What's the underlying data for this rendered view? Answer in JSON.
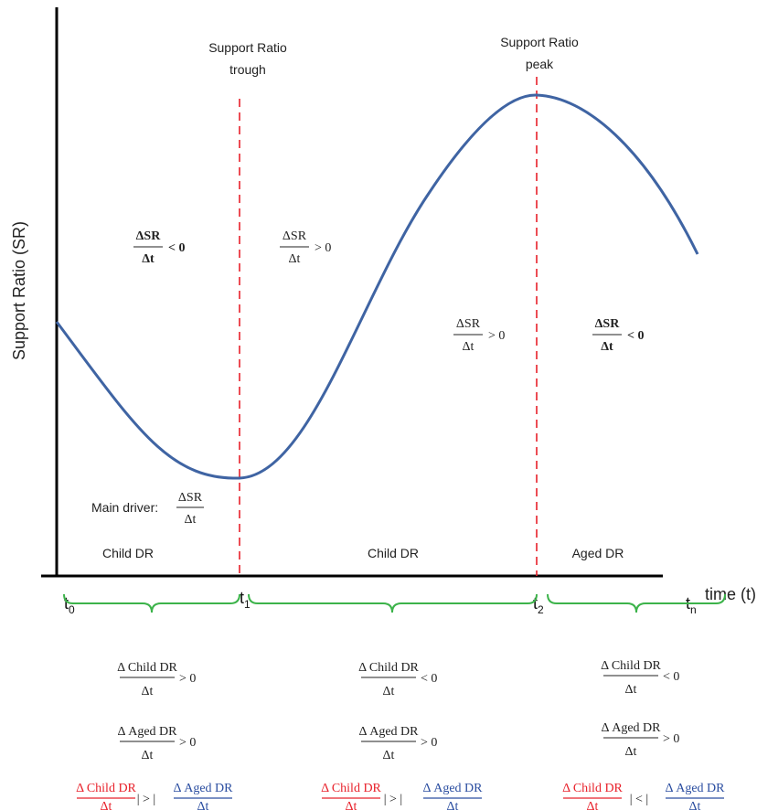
{
  "y_axis_label": "Support Ratio (SR)",
  "x_axis_label": "time (t)",
  "time_points": [
    {
      "name": "t",
      "sub": "0"
    },
    {
      "name": "t",
      "sub": "1"
    },
    {
      "name": "t",
      "sub": "2"
    },
    {
      "name": "t",
      "sub": "n"
    }
  ],
  "trough_label": [
    "Support Ratio",
    "trough"
  ],
  "peak_label": [
    "Support Ratio",
    "peak"
  ],
  "slope_labels": {
    "numerator": "ΔSR",
    "denominator": "Δt",
    "negative": "< 0",
    "positive": "> 0"
  },
  "main_driver_label": "Main driver:",
  "main_driver_frac": {
    "num": "ΔSR",
    "den": "Δt"
  },
  "phase_drivers": [
    "Child DR",
    "Child DR",
    "Aged DR"
  ],
  "conditions": [
    {
      "child": {
        "num": "Δ Child DR",
        "den": "Δt",
        "rel": "> 0"
      },
      "aged": {
        "num": "Δ Aged DR",
        "den": "Δt",
        "rel": "> 0"
      },
      "compare": "|  >  |"
    },
    {
      "child": {
        "num": "Δ Child DR",
        "den": "Δt",
        "rel": "< 0"
      },
      "aged": {
        "num": "Δ Aged DR",
        "den": "Δt",
        "rel": "> 0"
      },
      "compare": "|  >  |"
    },
    {
      "child": {
        "num": "Δ Child DR",
        "den": "Δt",
        "rel": "< 0"
      },
      "aged": {
        "num": "Δ Aged DR",
        "den": "Δt",
        "rel": "> 0"
      },
      "compare": "|  <  |"
    }
  ],
  "colors": {
    "curve": "#3f64a3",
    "axis": "#000000",
    "dashed": "#e8202a",
    "brace": "#3cb34a",
    "child_red": "#e8202a",
    "aged_blue": "#2a4da0"
  }
}
